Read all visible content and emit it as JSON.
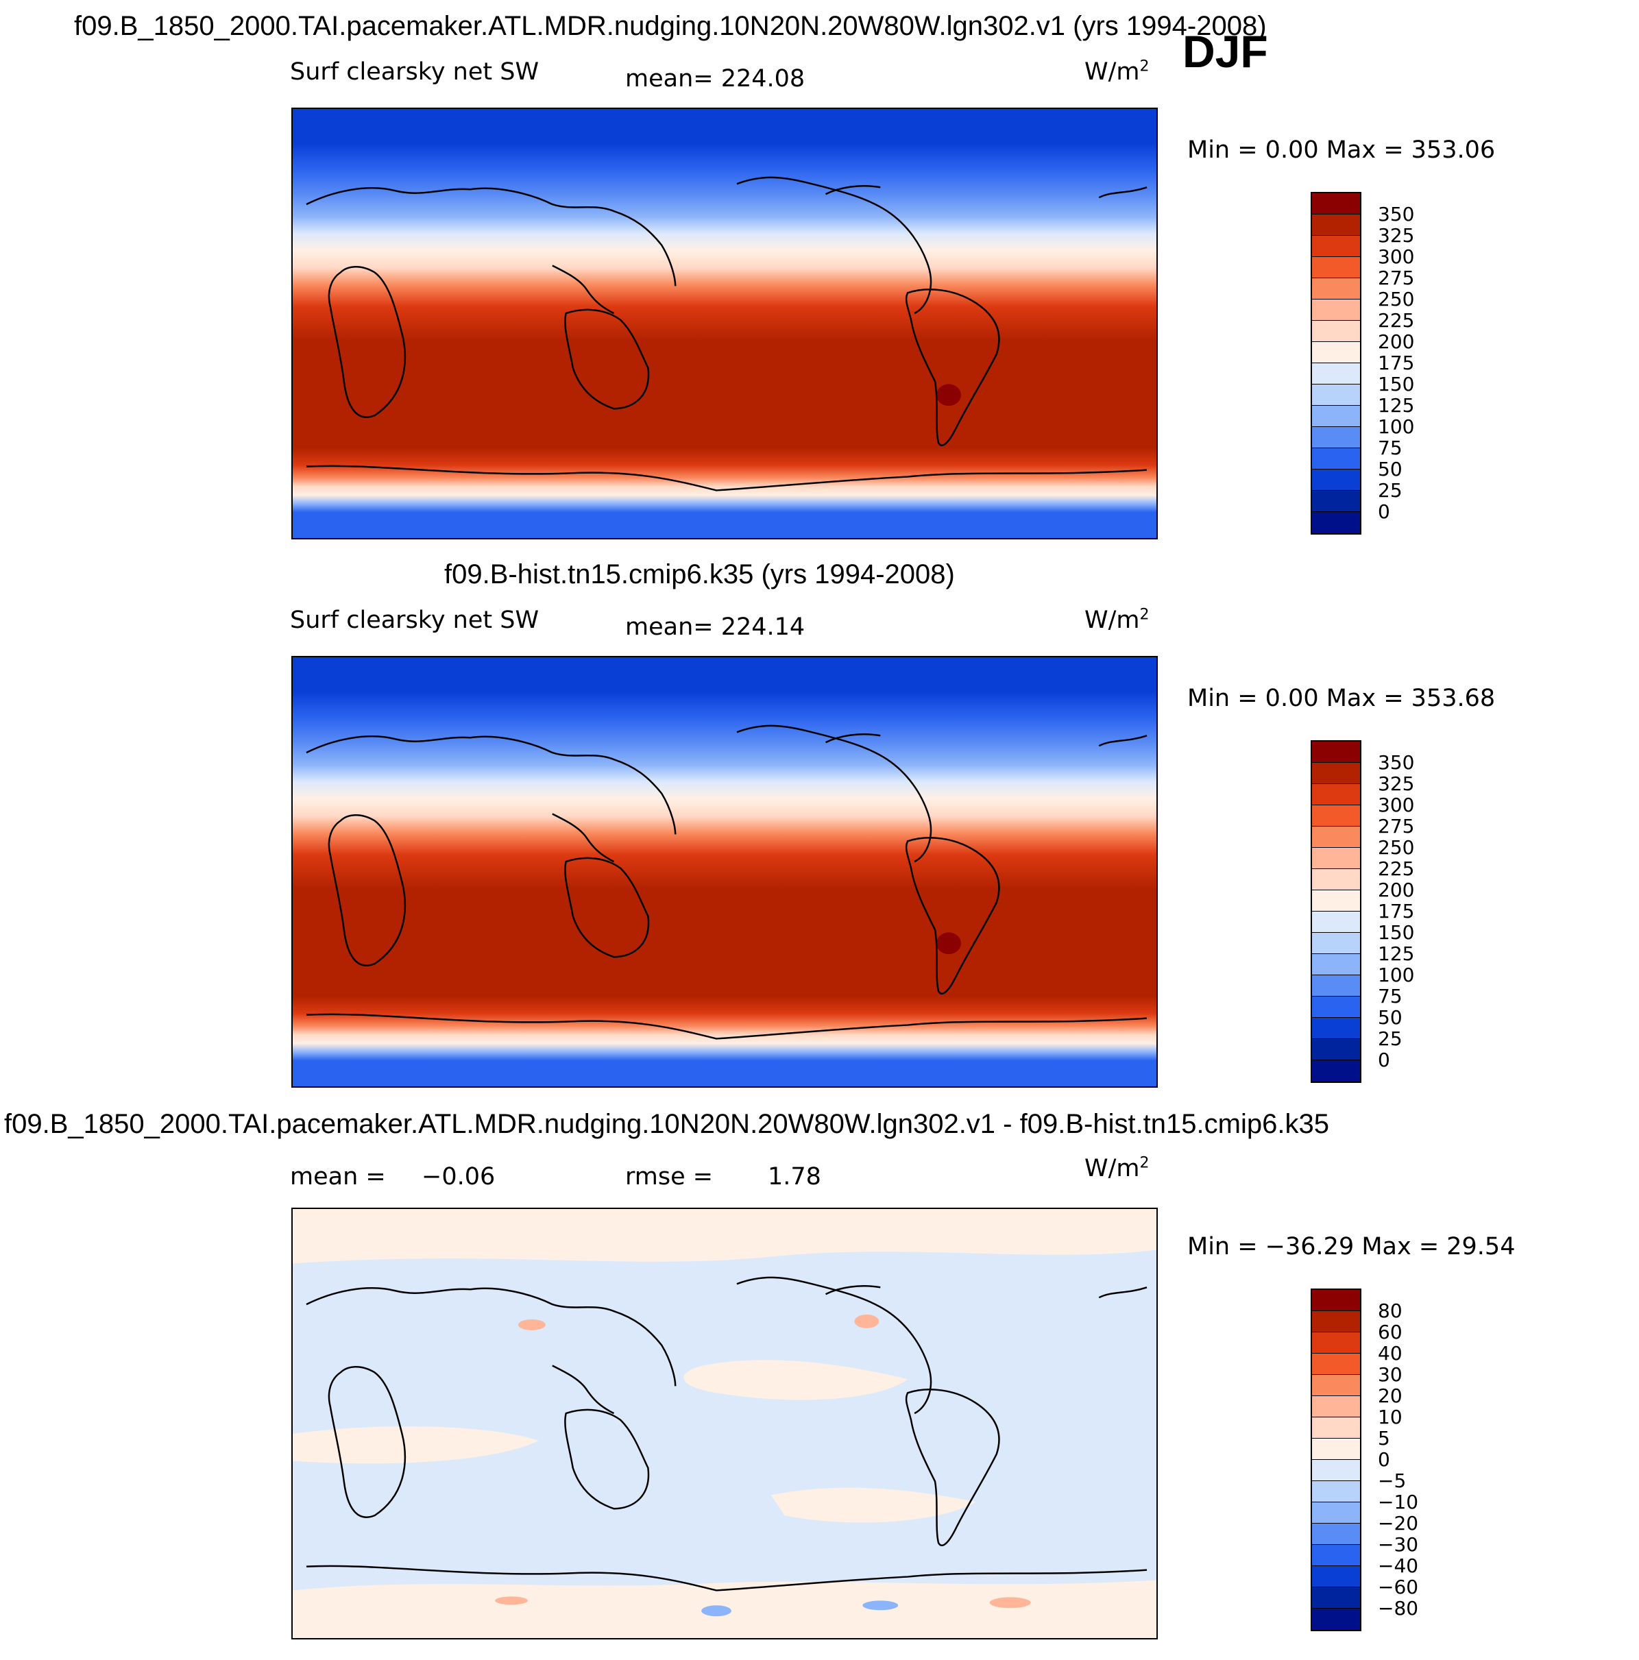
{
  "header": {
    "case1_title": "f09.B_1850_2000.TAI.pacemaker.ATL.MDR.nudging.10N20N.20W80W.lgn302.v1 (yrs 1994-2008)",
    "season": "DJF"
  },
  "panels": [
    {
      "title": "",
      "variable": "Surf clearsky net SW",
      "stat_text": "mean= 224.08",
      "units": "W/m",
      "units_exp": "2",
      "minmax": "Min =    0.00 Max = 353.06",
      "colorbar_labels": [
        "350",
        "325",
        "300",
        "275",
        "250",
        "225",
        "200",
        "175",
        "150",
        "125",
        "100",
        "75",
        "50",
        "25",
        "0"
      ],
      "colorbar_colors": [
        "#8b0000",
        "#b22200",
        "#dd3a12",
        "#f25a2a",
        "#fa8a5e",
        "#ffb698",
        "#ffd9c5",
        "#fff0e5",
        "#dbe9fb",
        "#b8d3fb",
        "#8cb4fa",
        "#5a8cf5",
        "#2a63f0",
        "#0a3fd6",
        "#00239e",
        "#00108a"
      ]
    },
    {
      "title": "f09.B-hist.tn15.cmip6.k35 (yrs 1994-2008)",
      "variable": "Surf clearsky net SW",
      "stat_text": "mean= 224.14",
      "units": "W/m",
      "units_exp": "2",
      "minmax": "Min =    0.00 Max = 353.68",
      "colorbar_labels": [
        "350",
        "325",
        "300",
        "275",
        "250",
        "225",
        "200",
        "175",
        "150",
        "125",
        "100",
        "75",
        "50",
        "25",
        "0"
      ],
      "colorbar_colors": [
        "#8b0000",
        "#b22200",
        "#dd3a12",
        "#f25a2a",
        "#fa8a5e",
        "#ffb698",
        "#ffd9c5",
        "#fff0e5",
        "#dbe9fb",
        "#b8d3fb",
        "#8cb4fa",
        "#5a8cf5",
        "#2a63f0",
        "#0a3fd6",
        "#00239e",
        "#00108a"
      ]
    },
    {
      "title": "f09.B_1850_2000.TAI.pacemaker.ATL.MDR.nudging.10N20N.20W80W.lgn302.v1 - f09.B-hist.tn15.cmip6.k35",
      "mean_label": "mean =",
      "mean_value": "−0.06",
      "rmse_label": "rmse =",
      "rmse_value": "1.78",
      "units": "W/m",
      "units_exp": "2",
      "minmax": "Min = −36.29 Max =   29.54",
      "colorbar_labels": [
        "80",
        "60",
        "40",
        "30",
        "20",
        "10",
        "5",
        "0",
        "−5",
        "−10",
        "−20",
        "−30",
        "−40",
        "−60",
        "−80"
      ],
      "colorbar_colors": [
        "#8b0000",
        "#b22200",
        "#dd3a12",
        "#f25a2a",
        "#fa8a5e",
        "#ffb698",
        "#ffd9c5",
        "#fff0e5",
        "#dbe9fb",
        "#b8d3fb",
        "#8cb4fa",
        "#5a8cf5",
        "#2a63f0",
        "#0a3fd6",
        "#00239e",
        "#00108a"
      ]
    }
  ]
}
